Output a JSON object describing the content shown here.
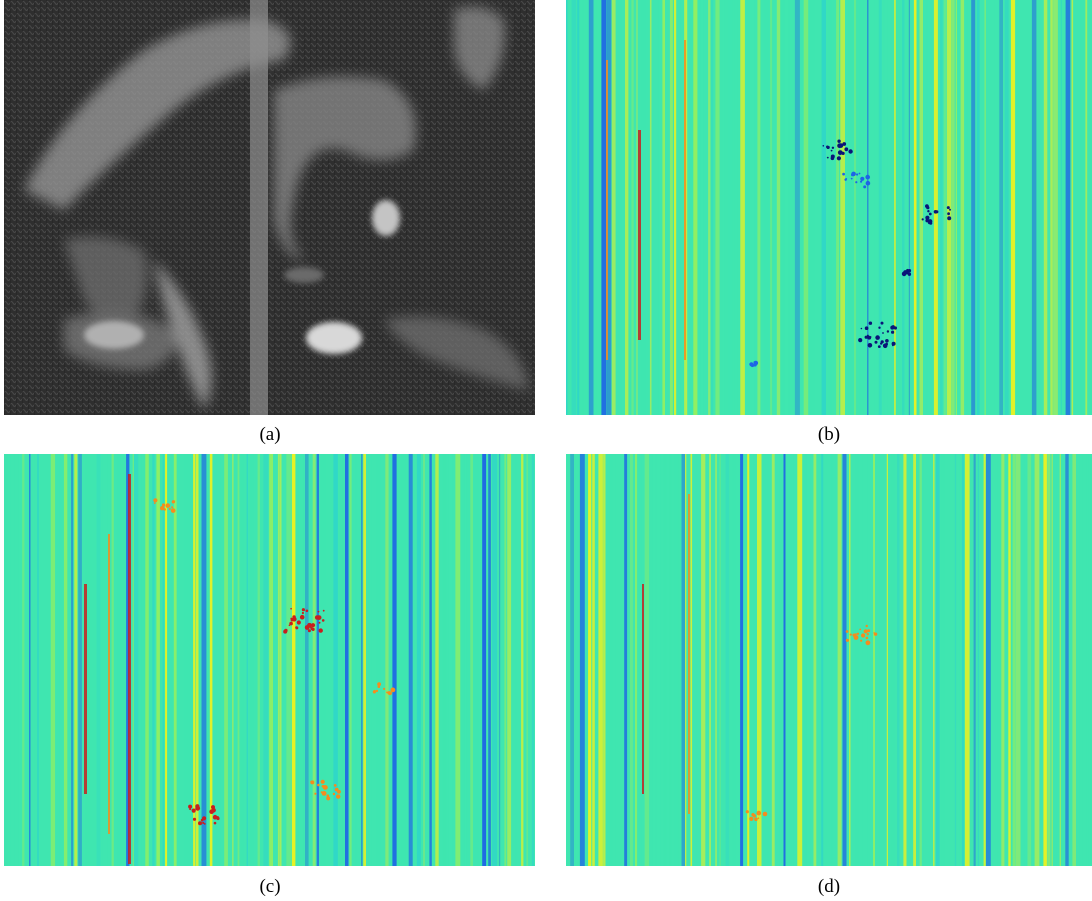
{
  "figure": {
    "panels": [
      {
        "id": "a",
        "caption": "(a)",
        "kind": "grayscale-photo"
      },
      {
        "id": "b",
        "caption": "(b)",
        "kind": "colormap-stripes"
      },
      {
        "id": "c",
        "caption": "(c)",
        "kind": "colormap-stripes"
      },
      {
        "id": "d",
        "caption": "(d)",
        "kind": "colormap-stripes"
      }
    ],
    "colors": {
      "base_cyan": "#3fe6b0",
      "yellow": "#f2f21a",
      "orange": "#f58c1e",
      "red": "#c81e1e",
      "blue": "#1e64e6",
      "dark_blue": "#0a1478",
      "photo_dark": "#2b2b2b",
      "photo_light": "#d8d8d8"
    }
  }
}
